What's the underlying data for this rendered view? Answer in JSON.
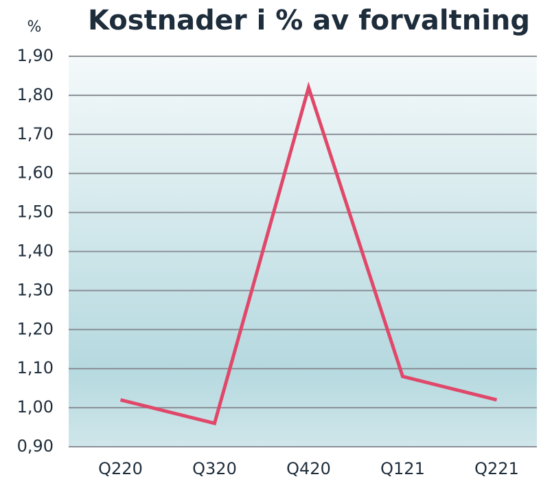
{
  "chart_data": {
    "type": "line",
    "title": "Kostnader i % av forvaltning",
    "y_label": "%",
    "categories": [
      "Q220",
      "Q320",
      "Q420",
      "Q121",
      "Q221"
    ],
    "series": [
      {
        "name": "Kostnader",
        "color": "#e0486a",
        "values": [
          1.02,
          0.96,
          1.82,
          1.08,
          1.02
        ]
      }
    ],
    "ylim": [
      0.9,
      1.9
    ],
    "yticks": [
      {
        "value": 0.9,
        "label": "0,90"
      },
      {
        "value": 1.0,
        "label": "1,00"
      },
      {
        "value": 1.1,
        "label": "1,10"
      },
      {
        "value": 1.2,
        "label": "1,20"
      },
      {
        "value": 1.3,
        "label": "1,30"
      },
      {
        "value": 1.4,
        "label": "1,40"
      },
      {
        "value": 1.5,
        "label": "1,50"
      },
      {
        "value": 1.6,
        "label": "1,60"
      },
      {
        "value": 1.7,
        "label": "1,70"
      },
      {
        "value": 1.8,
        "label": "1,80"
      },
      {
        "value": 1.9,
        "label": "1,90"
      }
    ],
    "grid": true
  }
}
